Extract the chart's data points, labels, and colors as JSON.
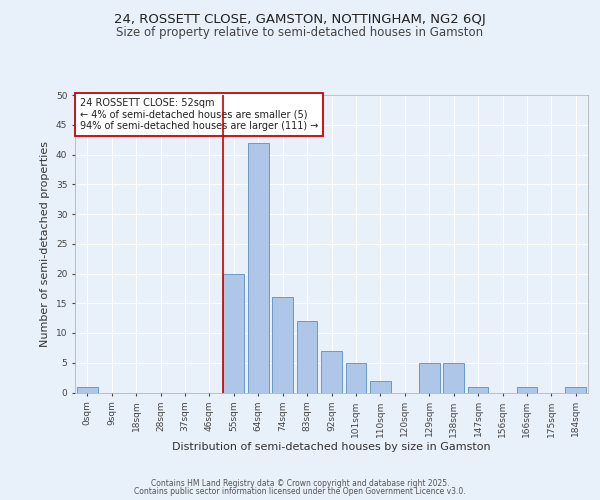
{
  "title1": "24, ROSSETT CLOSE, GAMSTON, NOTTINGHAM, NG2 6QJ",
  "title2": "Size of property relative to semi-detached houses in Gamston",
  "xlabel": "Distribution of semi-detached houses by size in Gamston",
  "ylabel": "Number of semi-detached properties",
  "bin_labels": [
    "0sqm",
    "9sqm",
    "18sqm",
    "28sqm",
    "37sqm",
    "46sqm",
    "55sqm",
    "64sqm",
    "74sqm",
    "83sqm",
    "92sqm",
    "101sqm",
    "110sqm",
    "120sqm",
    "129sqm",
    "138sqm",
    "147sqm",
    "156sqm",
    "166sqm",
    "175sqm",
    "184sqm"
  ],
  "bar_values": [
    1,
    0,
    0,
    0,
    0,
    0,
    20,
    42,
    16,
    12,
    7,
    5,
    2,
    0,
    5,
    5,
    1,
    0,
    1,
    0,
    1
  ],
  "bar_color": "#aec6e8",
  "bar_edge_color": "#5a8fc0",
  "annotation_text": "24 ROSSETT CLOSE: 52sqm\n← 4% of semi-detached houses are smaller (5)\n94% of semi-detached houses are larger (111) →",
  "annotation_box_color": "#ffffff",
  "annotation_box_edge": "#cc0000",
  "red_line_color": "#cc0000",
  "ylim": [
    0,
    50
  ],
  "yticks": [
    0,
    5,
    10,
    15,
    20,
    25,
    30,
    35,
    40,
    45,
    50
  ],
  "footer1": "Contains HM Land Registry data © Crown copyright and database right 2025.",
  "footer2": "Contains public sector information licensed under the Open Government Licence v3.0.",
  "bg_color": "#e8f0fa",
  "title1_fontsize": 9.5,
  "title2_fontsize": 8.5,
  "tick_fontsize": 6.5,
  "ylabel_fontsize": 8,
  "xlabel_fontsize": 8,
  "annot_fontsize": 7,
  "footer_fontsize": 5.5
}
